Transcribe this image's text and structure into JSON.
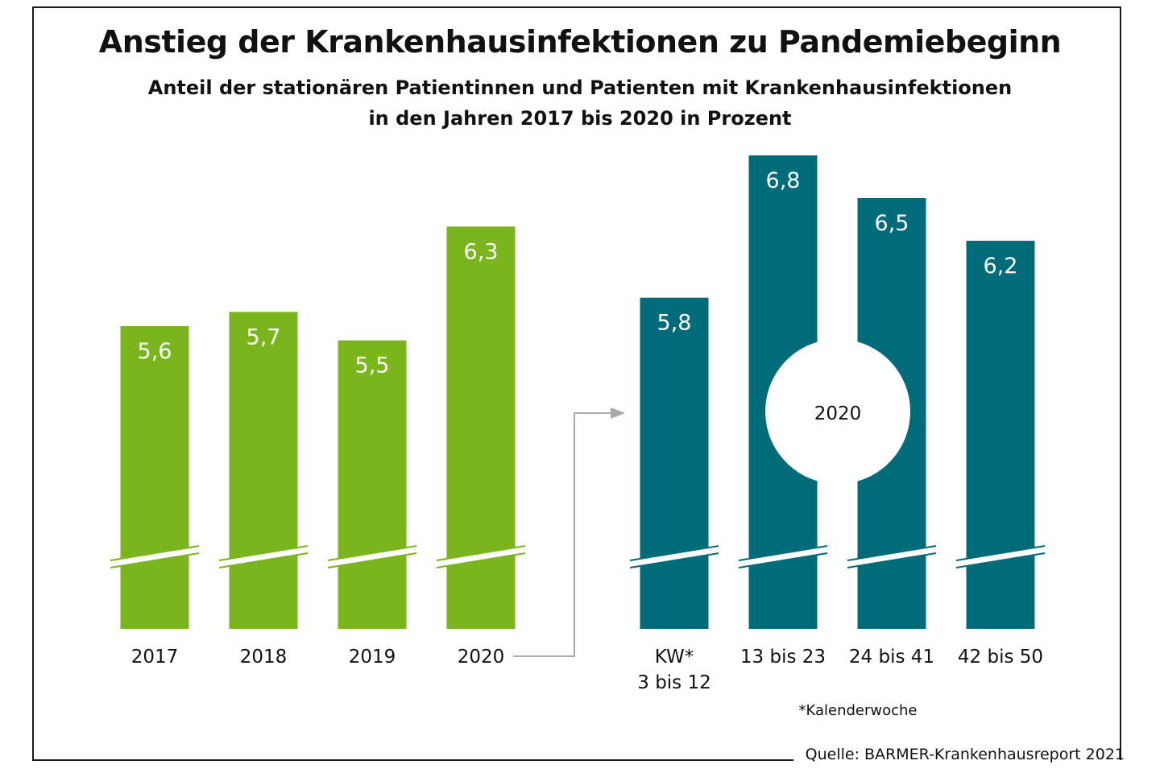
{
  "title": "Anstieg der Krankenhausinfektionen zu Pandemiebeginn",
  "subtitle_line1": "Anteil der stationären Patientinnen und Patienten mit Krankenhausinfektionen",
  "subtitle_line2": "in den Jahren 2017 bis 2020 in Prozent",
  "source": "Quelle: BARMER-Krankenhausreport 2021",
  "footnote": "*Kalenderwoche",
  "circle_label": "2020",
  "colors": {
    "green": "#7ab51d",
    "teal": "#006c7a",
    "arrow": "#aaaaaa",
    "text": "#111111"
  },
  "chart_data": [
    {
      "type": "bar",
      "categories": [
        "2017",
        "2018",
        "2019",
        "2020"
      ],
      "values": [
        5.6,
        5.7,
        5.5,
        6.3
      ],
      "value_labels": [
        "5,6",
        "5,7",
        "5,5",
        "6,3"
      ],
      "axis_break": true,
      "color": "#7ab51d"
    },
    {
      "type": "bar",
      "group_label": "2020",
      "categories": [
        [
          "KW*",
          "3 bis 12"
        ],
        [
          "13 bis 23"
        ],
        [
          "24 bis 41"
        ],
        [
          "42 bis 50"
        ]
      ],
      "values": [
        5.8,
        6.8,
        6.5,
        6.2
      ],
      "value_labels": [
        "5,8",
        "6,8",
        "6,5",
        "6,2"
      ],
      "axis_break": true,
      "color": "#006c7a"
    }
  ]
}
